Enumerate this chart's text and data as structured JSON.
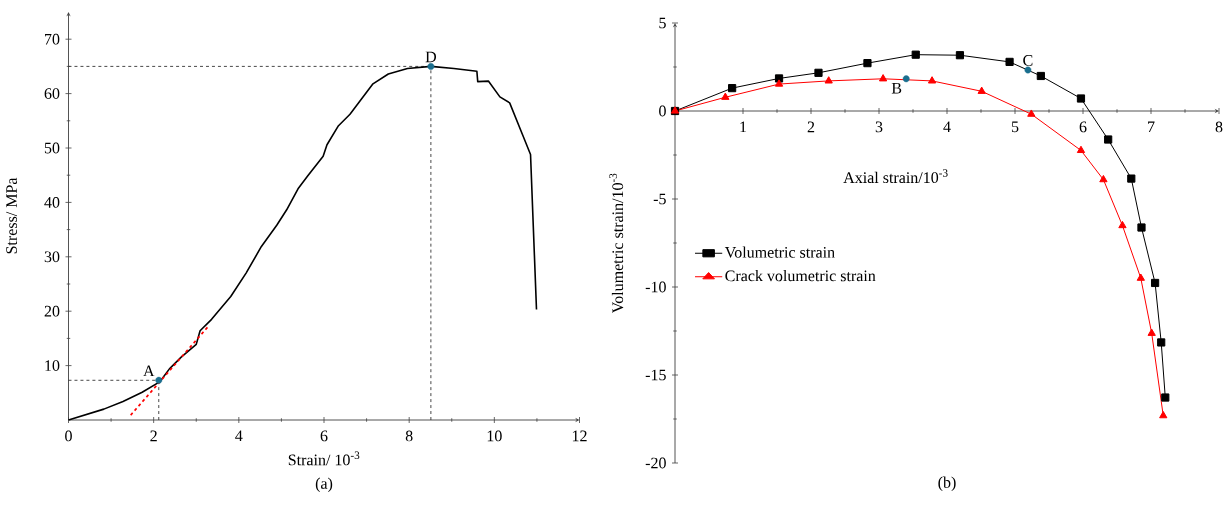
{
  "chart_data": [
    {
      "type": "line",
      "title": "(a)",
      "xlabel": "Strain/ 10$^{-3}$",
      "ylabel": "Stress/ MPa",
      "xlim": [
        0,
        12
      ],
      "ylim": [
        0,
        75
      ],
      "xticks": [
        0,
        2,
        4,
        6,
        8,
        10,
        12
      ],
      "yticks": [
        10,
        20,
        30,
        40,
        50,
        60,
        70
      ],
      "series": [
        {
          "color": "#000000",
          "x": [
            0,
            0.83,
            1.28,
            1.73,
            2.14,
            2.37,
            2.64,
            3.0,
            3.09,
            3.36,
            3.81,
            4.17,
            4.53,
            4.89,
            5.12,
            5.39,
            5.62,
            5.98,
            6.07,
            6.34,
            6.61,
            6.88,
            7.15,
            7.51,
            7.96,
            8.51,
            9.05,
            9.59,
            9.61,
            9.86,
            10.13,
            10.36,
            10.67,
            10.85,
            10.99
          ],
          "values": [
            0,
            2.0,
            3.4,
            5.1,
            7.0,
            9.4,
            11.5,
            13.9,
            16.4,
            18.5,
            22.7,
            27.0,
            31.9,
            35.8,
            38.6,
            42.5,
            44.9,
            48.5,
            50.6,
            54.1,
            56.2,
            59.0,
            61.8,
            63.6,
            64.6,
            65.0,
            64.6,
            64.1,
            62.2,
            62.3,
            59.4,
            58.3,
            52.3,
            48.8,
            20.3
          ]
        },
        {
          "color": "#ff0000",
          "line_style": "dashed",
          "x": [
            1.46,
            3.27
          ],
          "values": [
            0.9,
            17.1
          ]
        },
        {
          "type": "scatter",
          "color": "#1a6e8e",
          "marker": "circle",
          "x": [
            2.12,
            8.51
          ],
          "values": [
            7.3,
            65.0
          ]
        }
      ],
      "ref_lines": [
        {
          "axis": "y",
          "value": 65.0,
          "color": "#333333",
          "line_style": "dashed"
        },
        {
          "axis": "x",
          "value": 8.51,
          "color": "#333333",
          "line_style": "dashed"
        },
        {
          "axis": "y",
          "value": 7.3,
          "color": "#333333",
          "line_style": "dashed"
        },
        {
          "axis": "x",
          "value": 2.12,
          "color": "#333333",
          "line_style": "dashed"
        }
      ],
      "annotations": [
        {
          "text": "A",
          "x": 2.12,
          "y": 7.3
        },
        {
          "text": "D",
          "x": 8.51,
          "y": 65.0
        }
      ]
    },
    {
      "type": "line",
      "title": "(b)",
      "xlabel": "Axial strain/10$^{-3}$",
      "ylabel": "Volumetric strain/10$^{-3}$",
      "xlim": [
        0,
        8
      ],
      "ylim": [
        -20,
        5
      ],
      "xticks": [
        1,
        2,
        3,
        4,
        5,
        6,
        7,
        8
      ],
      "yticks": [
        -20,
        -15,
        -10,
        -5,
        0,
        5
      ],
      "legend": "left",
      "series": [
        {
          "name": "Volumetric strain",
          "color": "#000000",
          "marker": "square",
          "x": [
            0,
            0.84,
            1.53,
            2.11,
            2.83,
            3.54,
            4.19,
            4.92,
            5.38,
            5.97,
            6.37,
            6.71,
            6.86,
            7.06,
            7.15,
            7.21
          ],
          "values": [
            0,
            1.3,
            1.85,
            2.17,
            2.72,
            3.2,
            3.17,
            2.79,
            1.99,
            0.71,
            -1.62,
            -3.84,
            -6.62,
            -9.77,
            -13.15,
            -16.28
          ]
        },
        {
          "name": "Crack volumetric strain",
          "color": "#ff0000",
          "marker": "triangle",
          "x": [
            0,
            0.74,
            1.53,
            2.26,
            3.06,
            3.78,
            4.51,
            5.24,
            5.97,
            6.3,
            6.58,
            6.85,
            7.01,
            7.18
          ],
          "values": [
            0,
            0.78,
            1.53,
            1.71,
            1.83,
            1.71,
            1.12,
            -0.18,
            -2.24,
            -3.9,
            -6.51,
            -9.5,
            -12.63,
            -17.31
          ]
        },
        {
          "type": "scatter",
          "color": "#1a6e8e",
          "marker": "circle",
          "x": [
            3.4,
            5.19
          ],
          "values": [
            1.83,
            2.33
          ]
        }
      ],
      "annotations": [
        {
          "text": "B",
          "x": 3.4,
          "y": 1.83
        },
        {
          "text": "C",
          "x": 5.19,
          "y": 2.33
        }
      ]
    }
  ]
}
